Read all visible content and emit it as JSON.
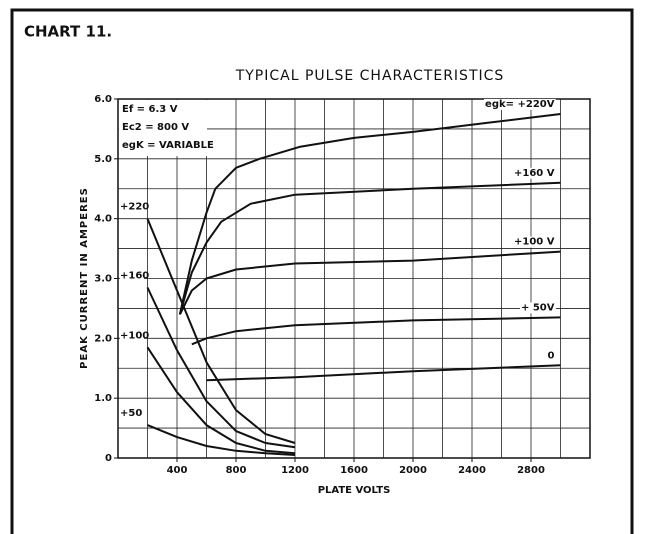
{
  "chart_data": {
    "type": "line",
    "header": "CHART 11.",
    "title": "TYPICAL PULSE CHARACTERISTICS",
    "x_label": "PLATE VOLTS",
    "y_label": "PEAK CURRENT IN AMPERES",
    "annotations": [
      "Ef = 6.3 V",
      "Ec2 = 800 V",
      "egK = VARIABLE"
    ],
    "xlim": [
      0,
      3200
    ],
    "ylim": [
      0,
      6
    ],
    "xticks": [
      400,
      800,
      1200,
      1600,
      2000,
      2400,
      2800
    ],
    "yticks": [
      0,
      {
        "value": 1,
        "label": "1.0"
      },
      {
        "value": 2,
        "label": "2.0"
      },
      {
        "value": 3,
        "label": "3.0"
      },
      {
        "value": 4,
        "label": "4.0"
      },
      {
        "value": 5,
        "label": "5.0"
      },
      {
        "value": 6,
        "label": "6.0"
      }
    ],
    "xgrid": [
      200,
      400,
      600,
      800,
      1000,
      1200,
      1400,
      1600,
      1800,
      2000,
      2200,
      2400,
      2600,
      2800,
      3000
    ],
    "ygrid": [
      0.5,
      1,
      1.5,
      2,
      2.5,
      3,
      3.5,
      4,
      4.5,
      5,
      5.5
    ],
    "grid": true,
    "series": [
      {
        "name": "egk= +220V",
        "color": "#111111",
        "x": [
          420,
          500,
          600,
          660,
          800,
          960,
          1230,
          1600,
          2000,
          2500,
          3000
        ],
        "values": [
          2.4,
          3.3,
          4.1,
          4.5,
          4.85,
          5.0,
          5.2,
          5.35,
          5.45,
          5.6,
          5.75
        ]
      },
      {
        "name": "+160 V",
        "color": "#111111",
        "x": [
          420,
          500,
          600,
          700,
          900,
          1200,
          2000,
          3000
        ],
        "values": [
          2.4,
          3.1,
          3.6,
          3.95,
          4.25,
          4.4,
          4.5,
          4.6
        ]
      },
      {
        "name": "+100 V",
        "color": "#111111",
        "x": [
          420,
          500,
          600,
          800,
          1200,
          2000,
          3000
        ],
        "values": [
          2.4,
          2.8,
          3.0,
          3.15,
          3.25,
          3.3,
          3.45
        ]
      },
      {
        "name": "+ 50V",
        "color": "#111111",
        "x": [
          500,
          600,
          800,
          1200,
          2000,
          3000
        ],
        "values": [
          1.9,
          2.0,
          2.12,
          2.22,
          2.3,
          2.35
        ]
      },
      {
        "name": "0",
        "color": "#111111",
        "x": [
          600,
          1200,
          2000,
          3000
        ],
        "values": [
          1.3,
          1.35,
          1.45,
          1.55
        ]
      },
      {
        "name": "+220",
        "color": "#111111",
        "x": [
          200,
          400,
          600,
          800,
          1000,
          1200
        ],
        "values": [
          4.0,
          2.8,
          1.6,
          0.8,
          0.4,
          0.25
        ]
      },
      {
        "name": "+160",
        "color": "#111111",
        "x": [
          200,
          400,
          600,
          800,
          1000,
          1200
        ],
        "values": [
          2.85,
          1.8,
          0.95,
          0.45,
          0.25,
          0.18
        ]
      },
      {
        "name": "+100",
        "color": "#111111",
        "x": [
          200,
          400,
          600,
          800,
          1000,
          1200
        ],
        "values": [
          1.85,
          1.1,
          0.55,
          0.25,
          0.12,
          0.08
        ]
      },
      {
        "name": "+50",
        "color": "#111111",
        "x": [
          200,
          400,
          600,
          800,
          1000,
          1200
        ],
        "values": [
          0.55,
          0.35,
          0.2,
          0.12,
          0.08,
          0.05
        ]
      }
    ]
  }
}
